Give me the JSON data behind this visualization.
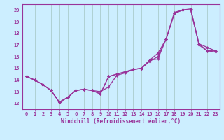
{
  "bg_color": "#cceeff",
  "grid_color": "#aacccc",
  "line_color": "#993399",
  "xlim": [
    -0.5,
    23.5
  ],
  "ylim": [
    11.5,
    20.5
  ],
  "xticks": [
    0,
    1,
    2,
    3,
    4,
    5,
    6,
    7,
    8,
    9,
    10,
    11,
    12,
    13,
    14,
    15,
    16,
    17,
    18,
    19,
    20,
    21,
    22,
    23
  ],
  "yticks": [
    12,
    13,
    14,
    15,
    16,
    17,
    18,
    19,
    20
  ],
  "xlabel": "Windchill (Refroidissement éolien,°C)",
  "line1_x": [
    0,
    1,
    2,
    3,
    4,
    5,
    6,
    7,
    8,
    9,
    10,
    11,
    12,
    13,
    14,
    15,
    16,
    17,
    18,
    19,
    20,
    21,
    22,
    23
  ],
  "line1_y": [
    14.3,
    14.0,
    13.6,
    13.1,
    12.1,
    12.5,
    13.1,
    13.2,
    13.1,
    12.8,
    14.3,
    14.5,
    14.7,
    14.9,
    15.0,
    15.7,
    15.8,
    17.5,
    19.7,
    20.0,
    20.0,
    17.1,
    16.5,
    16.5
  ],
  "line2_x": [
    0,
    1,
    2,
    3,
    4,
    5,
    6,
    7,
    8,
    9,
    10,
    11,
    12,
    13,
    14,
    15,
    16,
    17,
    18,
    19,
    20,
    21,
    22,
    23
  ],
  "line2_y": [
    14.3,
    14.0,
    13.6,
    13.1,
    12.1,
    12.5,
    13.1,
    13.2,
    13.1,
    13.0,
    13.4,
    14.4,
    14.6,
    14.9,
    15.0,
    15.6,
    16.0,
    17.5,
    19.7,
    20.0,
    20.0,
    17.1,
    16.8,
    16.5
  ],
  "line3_x": [
    0,
    1,
    2,
    3,
    4,
    5,
    6,
    7,
    8,
    9,
    10,
    11,
    12,
    13,
    14,
    15,
    16,
    17,
    18,
    19,
    20,
    21,
    22,
    23
  ],
  "line3_y": [
    14.3,
    14.0,
    13.6,
    13.1,
    12.1,
    12.5,
    13.1,
    13.2,
    13.1,
    12.8,
    14.3,
    14.5,
    14.7,
    14.9,
    15.0,
    15.7,
    16.3,
    17.5,
    19.8,
    20.0,
    20.1,
    17.0,
    16.5,
    16.4
  ]
}
